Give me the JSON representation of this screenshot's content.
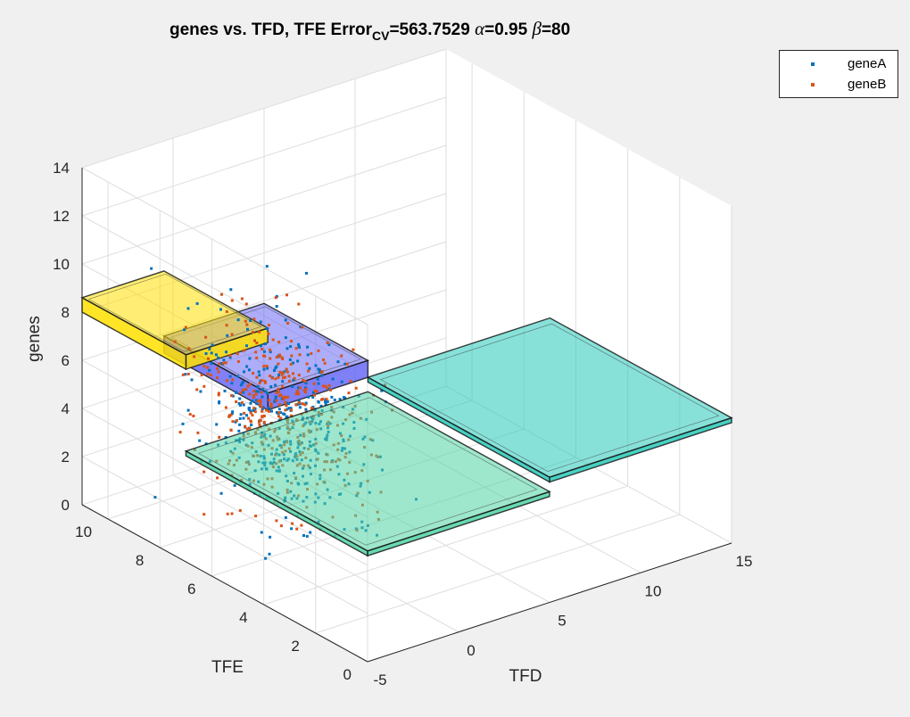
{
  "figure": {
    "background": "#f0f0f0"
  },
  "title": {
    "prefix": "genes vs. TFD, TFE  Error",
    "subscript": "CV",
    "error_value": "=563.7529 ",
    "alpha_symbol": "α",
    "alpha_value": "=0.95 ",
    "beta_symbol": "β",
    "beta_value": "=80"
  },
  "legend": [
    {
      "name": "geneA",
      "color": "#0072bd"
    },
    {
      "name": "geneB",
      "color": "#d95319"
    }
  ],
  "chart_data": {
    "type": "scatter",
    "view": "3d",
    "title": "genes vs. TFD, TFE  Error_CV=563.7529 α=0.95 β=80",
    "xlabel": "TFD",
    "ylabel": "TFE",
    "zlabel": "genes",
    "xlim": [
      -5,
      15
    ],
    "ylim": [
      0,
      11
    ],
    "zlim": [
      0,
      14
    ],
    "xticks": [
      "-5",
      "0",
      "5",
      "10",
      "15"
    ],
    "yticks": [
      "0",
      "2",
      "4",
      "6",
      "8",
      "10"
    ],
    "zticks": [
      "0",
      "2",
      "4",
      "6",
      "8",
      "10",
      "12",
      "14"
    ],
    "grid": true,
    "legend_position": "top-right outside",
    "series": [
      {
        "name": "geneA",
        "color": "#0072bd",
        "cluster": {
          "center": [
            -1,
            6,
            5.3
          ],
          "spread": [
            1.3,
            1.3,
            1.8
          ]
        },
        "count": 420
      },
      {
        "name": "geneB",
        "color": "#d95319",
        "cluster": {
          "center": [
            -1,
            6,
            5.6
          ],
          "spread": [
            1.3,
            1.3,
            1.9
          ]
        },
        "count": 380
      }
    ],
    "regions": [
      {
        "color": "#ffe000",
        "x": [
          -5,
          -0.5
        ],
        "y": [
          7,
          11
        ],
        "z": [
          8,
          8.6
        ]
      },
      {
        "color": "#6a6af6",
        "x": [
          -0.5,
          5
        ],
        "y": [
          7,
          11
        ],
        "z": [
          5.2,
          5.9
        ]
      },
      {
        "color": "#27c9b9",
        "x": [
          5,
          15
        ],
        "y": [
          0,
          7
        ],
        "z": [
          5,
          5.2
        ]
      },
      {
        "color": "#4ed4a4",
        "x": [
          -5,
          5
        ],
        "y": [
          0,
          7
        ],
        "z": [
          4.4,
          4.6
        ]
      }
    ]
  }
}
